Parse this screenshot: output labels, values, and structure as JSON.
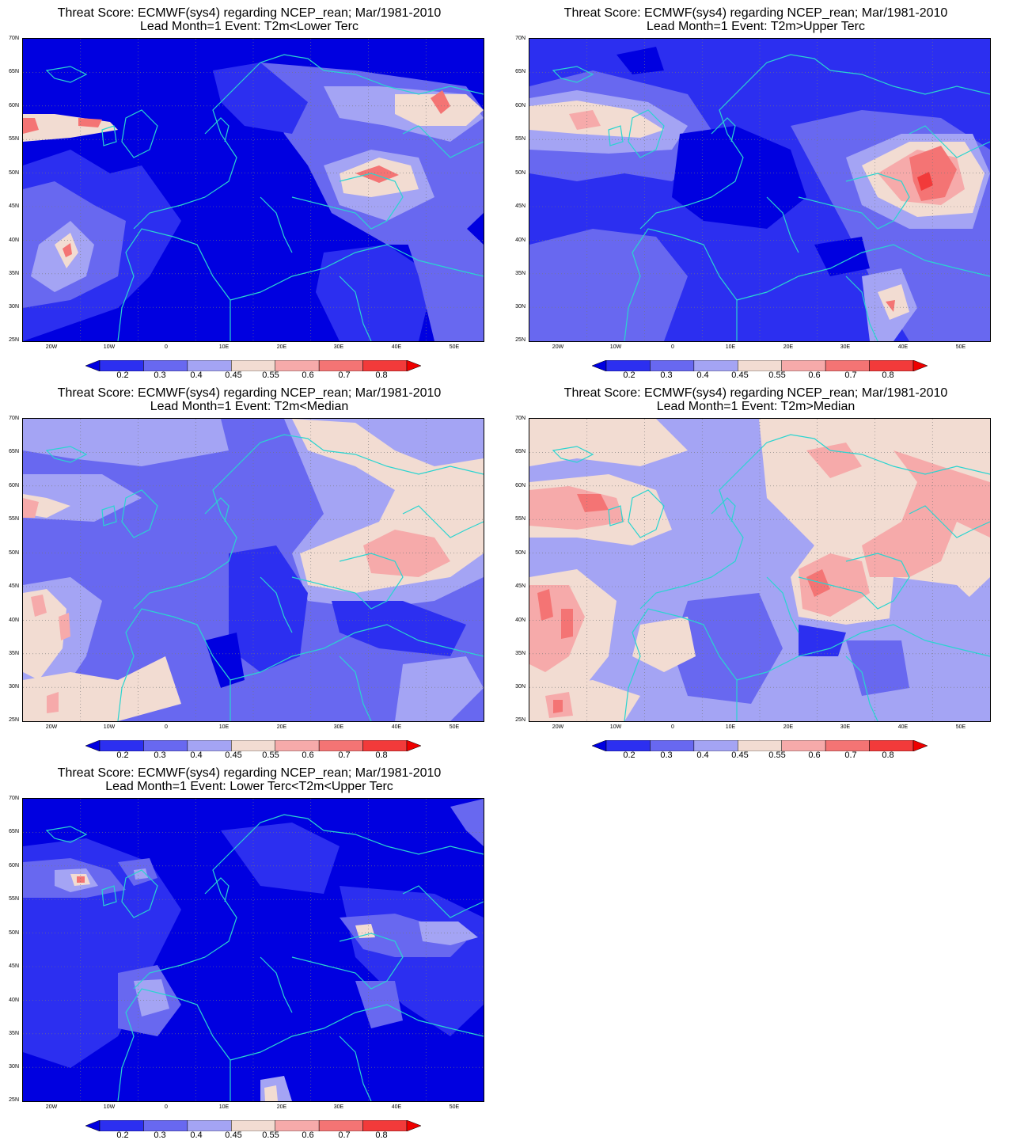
{
  "panels": [
    {
      "title_line1": "Threat Score: ECMWF(sys4) regarding NCEP_rean; Mar/1981-2010",
      "title_line2": "Lead Month=1  Event: T2m<Lower Terc"
    },
    {
      "title_line1": "Threat Score: ECMWF(sys4) regarding NCEP_rean; Mar/1981-2010",
      "title_line2": "Lead Month=1  Event: T2m>Upper Terc"
    },
    {
      "title_line1": "Threat Score: ECMWF(sys4) regarding NCEP_rean; Mar/1981-2010",
      "title_line2": "Lead Month=1  Event: T2m<Median"
    },
    {
      "title_line1": "Threat Score: ECMWF(sys4) regarding NCEP_rean; Mar/1981-2010",
      "title_line2": "Lead Month=1  Event: T2m>Median"
    },
    {
      "title_line1": "Threat Score: ECMWF(sys4) regarding NCEP_rean; Mar/1981-2010",
      "title_line2": "Lead Month=1  Event: Lower Terc<T2m<Upper Terc"
    }
  ],
  "lat_labels": [
    "70N",
    "65N",
    "60N",
    "55N",
    "50N",
    "45N",
    "40N",
    "35N",
    "30N",
    "25N"
  ],
  "lon_labels": [
    "20W",
    "10W",
    "0",
    "10E",
    "20E",
    "30E",
    "40E",
    "50E"
  ],
  "colorbar": {
    "labels": [
      "0.2",
      "0.3",
      "0.4",
      "0.45",
      "0.55",
      "0.6",
      "0.7",
      "0.8"
    ],
    "colors": [
      "#0000e0",
      "#2c2ff0",
      "#6868f0",
      "#a4a4f4",
      "#f2dcd2",
      "#f6aaaa",
      "#f47474",
      "#f23a3a",
      "#ee0000"
    ]
  },
  "coastline_color": "#2ad4d0"
}
